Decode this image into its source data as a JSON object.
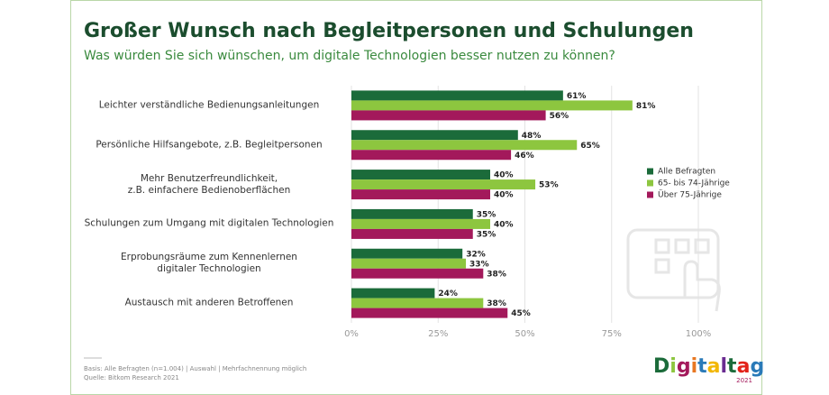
{
  "chart_data": {
    "type": "bar",
    "orientation": "horizontal",
    "title": "Großer Wunsch nach Begleitpersonen und Schulungen",
    "subtitle": "Was würden Sie sich wünschen, um digitale Technologien besser nutzen zu können?",
    "categories": [
      "Leichter verständliche Bedienungsanleitungen",
      "Persönliche Hilfsangebote, z.B. Begleitpersonen",
      "Mehr Benutzerfreundlichkeit,\nz.B. einfachere Bedienoberflächen",
      "Schulungen zum Umgang mit digitalen Technologien",
      "Erprobungsräume zum Kennenlernen\ndigitaler Technologien",
      "Austausch mit anderen Betroffenen"
    ],
    "series": [
      {
        "name": "Alle Befragten",
        "color": "#1b6b3a",
        "values": [
          61,
          48,
          40,
          35,
          32,
          24
        ],
        "value_labels": [
          "61%",
          "48%",
          "40%",
          "35%",
          "32%",
          "24%"
        ]
      },
      {
        "name": "65- bis 74-Jährige",
        "color": "#8dc63f",
        "values": [
          81,
          65,
          53,
          40,
          33,
          38
        ],
        "value_labels": [
          "81%",
          "65%",
          "53%",
          "40%",
          "33%",
          "38%"
        ]
      },
      {
        "name": "Über 75-Jährige",
        "color": "#a3195b",
        "values": [
          56,
          46,
          40,
          35,
          38,
          45
        ],
        "value_labels": [
          "56%",
          "46%",
          "40%",
          "35%",
          "38%",
          "45%"
        ]
      }
    ],
    "xlim": [
      0,
      100
    ],
    "xticks": [
      {
        "value": 0,
        "label": "0%"
      },
      {
        "value": 25,
        "label": "25%"
      },
      {
        "value": 50,
        "label": "50%"
      },
      {
        "value": 75,
        "label": "75%"
      },
      {
        "value": 100,
        "label": "100%"
      }
    ],
    "grid": true,
    "legend": "right",
    "footnote": [
      "Basis: Alle Befragten (n=1.004) | Auswahl | Mehrfachnennung möglich",
      "Quelle: Bitkom Research 2021"
    ],
    "logo": {
      "text": "Digitaltag",
      "year": "2021"
    }
  }
}
